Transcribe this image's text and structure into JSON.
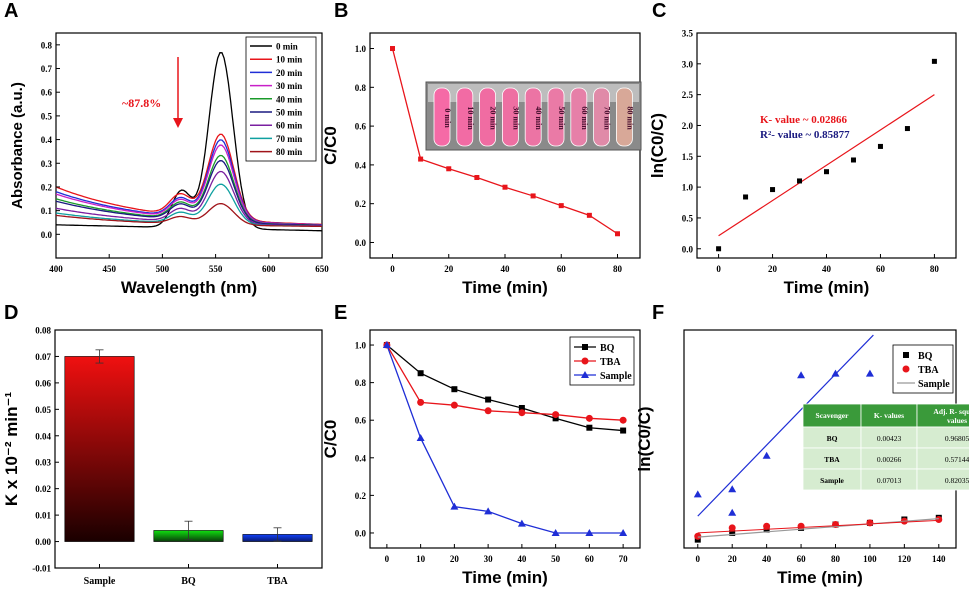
{
  "figure": {
    "panel_labels": [
      "A",
      "B",
      "C",
      "D",
      "E",
      "F"
    ]
  },
  "colors": {
    "black": "#000000",
    "red": "#e8151b",
    "blue": "#1f2ed6",
    "green": "#1a9a2a",
    "purple": "#7a1fa0",
    "navy": "#1a1a80",
    "magenta": "#c81fc8",
    "darkred": "#a0141a",
    "teal": "#0fa0a0",
    "kvalue": "#e8151b",
    "r2value": "#1a1a80",
    "table_header": "#3a9a3a",
    "table_row": "#d6ecd0",
    "gradient_red": "#f01010",
    "gradient_green": "#10e010",
    "gradient_blue": "#1040ff",
    "fit_line": "#999999"
  },
  "chart_data": [
    {
      "panel": "A",
      "type": "line",
      "xlabel": "Wavelength (nm)",
      "ylabel": "Absorbance (a.u.)",
      "xlim": [
        400,
        650
      ],
      "ylim": [
        -0.1,
        0.85
      ],
      "xticks": [
        "400",
        "450",
        "500",
        "550",
        "600",
        "650"
      ],
      "yticks": [
        "0.0",
        "0.1",
        "0.2",
        "0.3",
        "0.4",
        "0.5",
        "0.6",
        "0.7",
        "0.8"
      ],
      "annotation": "~87.8%",
      "legend_position": "top-right",
      "series": [
        {
          "name": "0 min",
          "color": "black",
          "peak": 0.745,
          "base": 0.04,
          "shoulder": 0.155
        },
        {
          "name": "10 min",
          "color": "red",
          "peak": 0.36,
          "base": 0.17,
          "shoulder": 0.09
        },
        {
          "name": "20 min",
          "color": "blue",
          "peak": 0.34,
          "base": 0.15,
          "shoulder": 0.08
        },
        {
          "name": "30 min",
          "color": "magenta",
          "peak": 0.32,
          "base": 0.14,
          "shoulder": 0.075
        },
        {
          "name": "40 min",
          "color": "green",
          "peak": 0.28,
          "base": 0.12,
          "shoulder": 0.07
        },
        {
          "name": "50 min",
          "color": "navy",
          "peak": 0.26,
          "base": 0.11,
          "shoulder": 0.065
        },
        {
          "name": "60 min",
          "color": "purple",
          "peak": 0.22,
          "base": 0.08,
          "shoulder": 0.055
        },
        {
          "name": "70 min",
          "color": "teal",
          "peak": 0.17,
          "base": 0.06,
          "shoulder": 0.045
        },
        {
          "name": "80 min",
          "color": "darkred",
          "peak": 0.09,
          "base": 0.05,
          "shoulder": 0.03
        }
      ]
    },
    {
      "panel": "B",
      "type": "line",
      "xlabel": "Time (min)",
      "ylabel": "C/C0",
      "xlim": [
        -8,
        88
      ],
      "ylim": [
        -0.08,
        1.08
      ],
      "xticks": [
        "0",
        "20",
        "40",
        "60",
        "80"
      ],
      "yticks": [
        "0.0",
        "0.2",
        "0.4",
        "0.6",
        "0.8",
        "1.0"
      ],
      "inset_labels": [
        "0 min",
        "10 min",
        "20 min",
        "30 min",
        "40 min",
        "50 min",
        "60 min",
        "70 min",
        "80 min"
      ],
      "series": [
        {
          "name": "C/C0",
          "color": "red",
          "x": [
            0,
            10,
            20,
            30,
            40,
            50,
            60,
            70,
            80
          ],
          "y": [
            1.0,
            0.43,
            0.38,
            0.335,
            0.285,
            0.24,
            0.19,
            0.14,
            0.045
          ]
        }
      ]
    },
    {
      "panel": "C",
      "type": "scatter",
      "xlabel": "Time (min)",
      "ylabel": "ln(C0/C)",
      "xlim": [
        -8,
        88
      ],
      "ylim": [
        -0.15,
        3.5
      ],
      "xticks": [
        "0",
        "20",
        "40",
        "60",
        "80"
      ],
      "yticks": [
        "0.0",
        "0.5",
        "1.0",
        "1.5",
        "2.0",
        "2.5",
        "3.0",
        "3.5"
      ],
      "annotations": [
        "K- value ~ 0.02866",
        "R²- value ~ 0.85877"
      ],
      "series": [
        {
          "name": "data",
          "color": "black",
          "x": [
            0,
            10,
            20,
            30,
            40,
            50,
            60,
            70,
            80
          ],
          "y": [
            0.0,
            0.84,
            0.96,
            1.1,
            1.25,
            1.44,
            1.66,
            1.95,
            3.04
          ]
        },
        {
          "name": "fit",
          "color": "red",
          "x": [
            0,
            80
          ],
          "y": [
            0.21,
            2.5
          ]
        }
      ]
    },
    {
      "panel": "D",
      "type": "bar",
      "xlabel": "",
      "ylabel": "K x 10⁻² min⁻¹",
      "ylim": [
        -0.01,
        0.08
      ],
      "yticks": [
        "-0.01",
        "0.00",
        "0.01",
        "0.02",
        "0.03",
        "0.04",
        "0.05",
        "0.06",
        "0.07",
        "0.08"
      ],
      "categories": [
        "Sample",
        "BQ",
        "TBA"
      ],
      "values": [
        0.07,
        0.0042,
        0.0027
      ],
      "errors": [
        0.0025,
        0.0035,
        0.0025
      ],
      "bar_colors": [
        "gradient_red",
        "gradient_green",
        "gradient_blue"
      ]
    },
    {
      "panel": "E",
      "type": "line",
      "xlabel": "Time (min)",
      "ylabel": "C/C0",
      "xlim": [
        -5,
        75
      ],
      "ylim": [
        -0.08,
        1.08
      ],
      "xticks": [
        "0",
        "10",
        "20",
        "30",
        "40",
        "50",
        "60",
        "70"
      ],
      "yticks": [
        "0.0",
        "0.2",
        "0.4",
        "0.6",
        "0.8",
        "1.0"
      ],
      "legend_position": "top-right",
      "series": [
        {
          "name": "BQ",
          "color": "black",
          "marker": "square",
          "x": [
            0,
            10,
            20,
            30,
            40,
            50,
            60,
            70
          ],
          "y": [
            1.0,
            0.85,
            0.765,
            0.71,
            0.665,
            0.61,
            0.56,
            0.545
          ]
        },
        {
          "name": "TBA",
          "color": "red",
          "marker": "circle",
          "x": [
            0,
            10,
            20,
            30,
            40,
            50,
            60,
            70
          ],
          "y": [
            1.0,
            0.695,
            0.68,
            0.65,
            0.64,
            0.63,
            0.61,
            0.6
          ]
        },
        {
          "name": "Sample",
          "color": "blue",
          "marker": "triangle",
          "x": [
            0,
            10,
            20,
            30,
            40,
            50,
            60,
            70
          ],
          "y": [
            1.0,
            0.505,
            0.14,
            0.115,
            0.05,
            0.0,
            0.0,
            0.0
          ]
        }
      ]
    },
    {
      "panel": "F",
      "type": "scatter",
      "xlabel": "Time (min)",
      "ylabel": "ln(C0/C)",
      "xlim": [
        -8,
        150
      ],
      "ylim": [
        -0.05,
        1.25
      ],
      "xticks": [
        "0",
        "20",
        "40",
        "60",
        "80",
        "100",
        "120",
        "140"
      ],
      "legend_position": "top-right",
      "series": [
        {
          "name": "BQ",
          "color": "black",
          "marker": "square",
          "x": [
            0,
            20,
            40,
            60,
            80,
            100,
            120,
            140
          ],
          "y": [
            0.0,
            0.04,
            0.06,
            0.07,
            0.09,
            0.1,
            0.12,
            0.13
          ]
        },
        {
          "name": "TBA",
          "color": "red",
          "marker": "circle",
          "x": [
            0,
            20,
            40,
            60,
            80,
            100,
            120,
            140
          ],
          "y": [
            0.02,
            0.07,
            0.08,
            0.08,
            0.09,
            0.1,
            0.11,
            0.12
          ]
        },
        {
          "name": "Sample",
          "color": "blue",
          "marker": "triangle",
          "x": [
            0,
            20,
            20,
            40,
            60,
            80,
            100
          ],
          "y": [
            0.27,
            0.16,
            0.3,
            0.5,
            0.98,
            0.99,
            0.99
          ]
        },
        {
          "name": "Sample",
          "color": "fit_line",
          "line_only": true,
          "x": [
            0,
            140
          ],
          "y": [
            0.015,
            0.125
          ]
        },
        {
          "name": "Sample fit",
          "color": "blue",
          "line_only": true,
          "hidden_legend": true,
          "x": [
            0,
            102
          ],
          "y": [
            0.14,
            1.22
          ]
        }
      ],
      "table": {
        "headers": [
          "Scavenger",
          "K- values",
          "Adj. R- square values"
        ],
        "rows": [
          [
            "BQ",
            "0.00423",
            "0.96805"
          ],
          [
            "TBA",
            "0.00266",
            "0.57144"
          ],
          [
            "Sample",
            "0.07013",
            "0.82035"
          ]
        ]
      }
    }
  ]
}
